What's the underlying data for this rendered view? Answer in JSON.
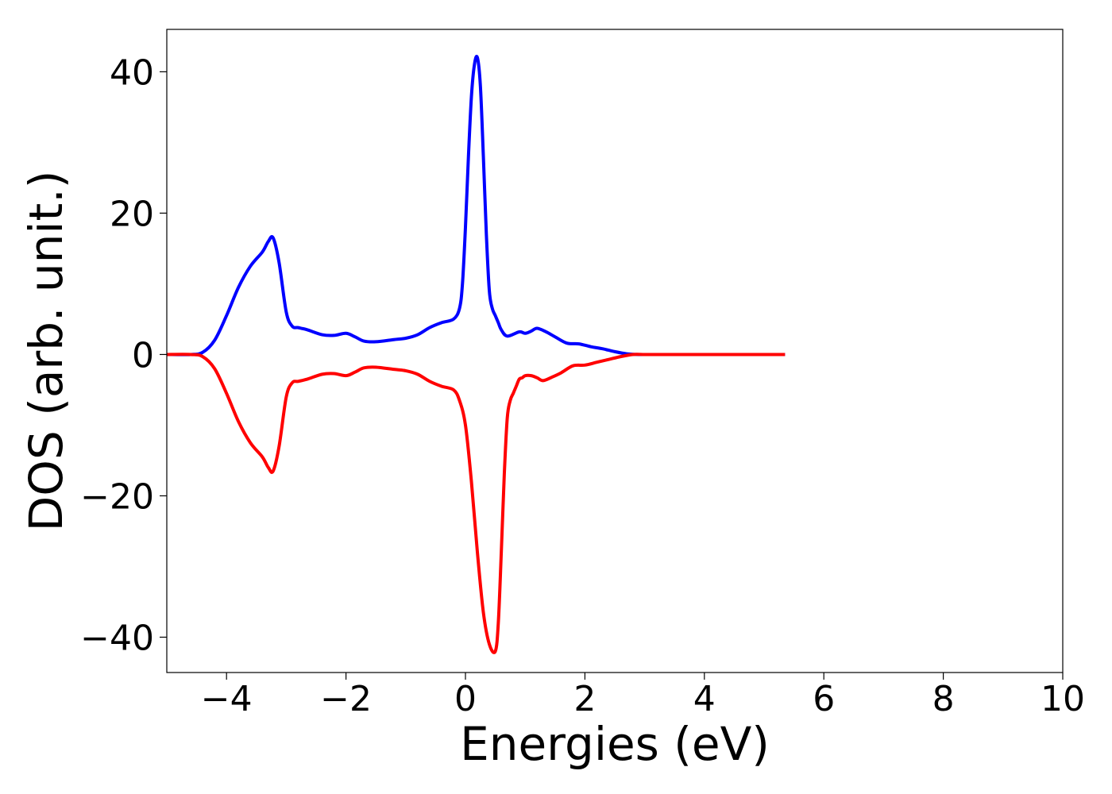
{
  "chart_data": {
    "type": "line",
    "title": "",
    "xlabel": "Energies (eV)",
    "ylabel": "DOS (arb. unit.)",
    "xlim": [
      -5,
      10
    ],
    "ylim": [
      -45,
      46
    ],
    "xticks": [
      -4,
      -2,
      0,
      2,
      4,
      6,
      8,
      10
    ],
    "yticks": [
      -40,
      -20,
      0,
      20,
      40
    ],
    "xtick_labels": [
      "−4",
      "−2",
      "0",
      "2",
      "4",
      "6",
      "8",
      "10"
    ],
    "ytick_labels": [
      "−40",
      "−20",
      "0",
      "20",
      "40"
    ],
    "grid": false,
    "legend": "none",
    "series": [
      {
        "color": "#0000ff",
        "x": [
          -5.0,
          -4.6,
          -4.4,
          -4.2,
          -4.0,
          -3.8,
          -3.6,
          -3.4,
          -3.3,
          -3.22,
          -3.12,
          -3.0,
          -2.9,
          -2.8,
          -2.65,
          -2.4,
          -2.2,
          -2.0,
          -1.85,
          -1.7,
          -1.5,
          -1.2,
          -1.0,
          -0.8,
          -0.6,
          -0.4,
          -0.2,
          -0.1,
          -0.05,
          0.0,
          0.05,
          0.1,
          0.15,
          0.2,
          0.25,
          0.3,
          0.35,
          0.4,
          0.45,
          0.5,
          0.55,
          0.6,
          0.7,
          0.9,
          1.0,
          1.1,
          1.2,
          1.35,
          1.5,
          1.7,
          1.9,
          2.1,
          2.3,
          2.5,
          2.7,
          2.9,
          3.1,
          3.3,
          3.5,
          3.7,
          4.0,
          4.5,
          5.0,
          5.35
        ],
        "y": [
          0,
          0,
          0.3,
          2.0,
          5.5,
          9.5,
          12.5,
          14.5,
          16.0,
          16.5,
          13.0,
          6.0,
          4.0,
          3.8,
          3.5,
          2.8,
          2.7,
          3.0,
          2.5,
          1.9,
          1.8,
          2.1,
          2.3,
          2.8,
          3.8,
          4.5,
          5.0,
          6.5,
          10.0,
          18.0,
          28.0,
          36.5,
          41.0,
          42.0,
          38.0,
          28.0,
          17.0,
          9.0,
          6.5,
          5.5,
          4.5,
          3.5,
          2.6,
          3.2,
          3.0,
          3.3,
          3.7,
          3.2,
          2.5,
          1.6,
          1.5,
          1.1,
          0.8,
          0.4,
          0.1,
          0,
          0,
          0,
          0,
          0,
          0,
          0,
          0,
          0
        ]
      },
      {
        "color": "#ff0000",
        "x": [
          -5.0,
          -4.6,
          -4.4,
          -4.2,
          -4.0,
          -3.8,
          -3.6,
          -3.4,
          -3.3,
          -3.22,
          -3.12,
          -3.0,
          -2.9,
          -2.8,
          -2.65,
          -2.4,
          -2.2,
          -2.0,
          -1.85,
          -1.7,
          -1.5,
          -1.2,
          -1.0,
          -0.8,
          -0.6,
          -0.4,
          -0.2,
          -0.1,
          0.0,
          0.1,
          0.2,
          0.3,
          0.4,
          0.5,
          0.55,
          0.6,
          0.65,
          0.7,
          0.75,
          0.8,
          0.85,
          0.9,
          0.95,
          1.0,
          1.1,
          1.2,
          1.3,
          1.45,
          1.6,
          1.8,
          2.0,
          2.2,
          2.4,
          2.6,
          2.8,
          3.0,
          3.2,
          3.4,
          3.6,
          3.8,
          4.0,
          4.5,
          5.0,
          5.35
        ],
        "y": [
          0,
          0,
          -0.3,
          -2.0,
          -5.5,
          -9.5,
          -12.5,
          -14.5,
          -16.0,
          -16.5,
          -13.0,
          -6.0,
          -4.0,
          -3.8,
          -3.5,
          -2.8,
          -2.7,
          -3.0,
          -2.5,
          -1.9,
          -1.8,
          -2.1,
          -2.3,
          -2.8,
          -3.8,
          -4.5,
          -5.0,
          -6.5,
          -10.0,
          -18.0,
          -28.0,
          -36.5,
          -41.0,
          -42.0,
          -38.0,
          -28.0,
          -17.0,
          -9.0,
          -6.5,
          -5.5,
          -4.5,
          -3.5,
          -3.3,
          -3.0,
          -3.0,
          -3.3,
          -3.7,
          -3.2,
          -2.6,
          -1.6,
          -1.5,
          -1.1,
          -0.7,
          -0.3,
          0,
          0,
          0,
          0,
          0,
          0,
          0,
          0,
          0,
          0
        ]
      }
    ]
  }
}
